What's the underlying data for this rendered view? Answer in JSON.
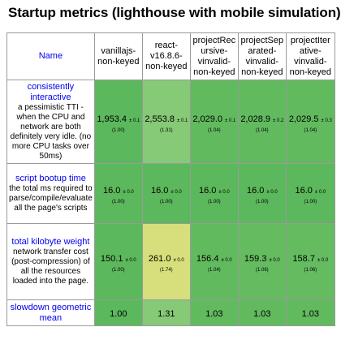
{
  "title": "Startup metrics (lighthouse with mobile simulation)",
  "chart_data": {
    "type": "table",
    "name_header": "Name",
    "frameworks": [
      "vanillajs-non-keyed",
      "react-v16.8.6-non-keyed",
      "projectRecursive-vinvalid-non-keyed",
      "projectSeparated-vinvalid-non-keyed",
      "projectIterative-vinvalid-non-keyed"
    ],
    "framework_labels": [
      "vanillajs-\nnon-keyed",
      "react-\nv16.8.6-\nnon-keyed",
      "projectRec\nursive-\nvinvalid-\nnon-keyed",
      "projectSep\narated-\nvinvalid-\nnon-keyed",
      "projectIter\native-\nvinvalid-\nnon-keyed"
    ],
    "metrics": [
      {
        "name": "consistently interactive",
        "description": "a pessimistic TTI - when the CPU and network are both definitely very idle. (no more CPU tasks over 50ms)",
        "cells": [
          {
            "value": "1,953.4",
            "sd": "± 0.1",
            "ratio": "(1.00)",
            "color": "#5cb85c"
          },
          {
            "value": "2,553.8",
            "sd": "± 0.1",
            "ratio": "(1.31)",
            "color": "#86c976"
          },
          {
            "value": "2,029.0",
            "sd": "± 0.1",
            "ratio": "(1.04)",
            "color": "#62ba5f"
          },
          {
            "value": "2,028.9",
            "sd": "± 0.2",
            "ratio": "(1.04)",
            "color": "#62ba5f"
          },
          {
            "value": "2,029.5",
            "sd": "± 0.3",
            "ratio": "(1.04)",
            "color": "#62ba5f"
          }
        ]
      },
      {
        "name": "script bootup time",
        "description": "the total ms required to parse/compile/evaluate all the page's scripts",
        "cells": [
          {
            "value": "16.0",
            "sd": "± 0.0",
            "ratio": "(1.00)",
            "color": "#5cb85c"
          },
          {
            "value": "16.0",
            "sd": "± 0.0",
            "ratio": "(1.00)",
            "color": "#5cb85c"
          },
          {
            "value": "16.0",
            "sd": "± 0.0",
            "ratio": "(1.00)",
            "color": "#5cb85c"
          },
          {
            "value": "16.0",
            "sd": "± 0.0",
            "ratio": "(1.00)",
            "color": "#5cb85c"
          },
          {
            "value": "16.0",
            "sd": "± 0.0",
            "ratio": "(1.00)",
            "color": "#5cb85c"
          }
        ]
      },
      {
        "name": "total kilobyte weight",
        "description": "network transfer cost (post-compression) of all the resources loaded into the page.",
        "cells": [
          {
            "value": "150.1",
            "sd": "± 0.0",
            "ratio": "(1.00)",
            "color": "#5cb85c"
          },
          {
            "value": "261.0",
            "sd": "± 0.0",
            "ratio": "(1.74)",
            "color": "#d6df7b"
          },
          {
            "value": "156.4",
            "sd": "± 0.0",
            "ratio": "(1.04)",
            "color": "#62ba5f"
          },
          {
            "value": "159.3",
            "sd": "± 0.0",
            "ratio": "(1.06)",
            "color": "#64bb60"
          },
          {
            "value": "158.7",
            "sd": "± 0.0",
            "ratio": "(1.06)",
            "color": "#64bb60"
          }
        ]
      }
    ],
    "geometric_mean": {
      "name": "slowdown geometric mean",
      "cells": [
        {
          "value": "1.00",
          "color": "#5cb85c"
        },
        {
          "value": "1.31",
          "color": "#86c976"
        },
        {
          "value": "1.03",
          "color": "#62ba5f"
        },
        {
          "value": "1.03",
          "color": "#62ba5f"
        },
        {
          "value": "1.03",
          "color": "#62ba5f"
        }
      ]
    }
  }
}
